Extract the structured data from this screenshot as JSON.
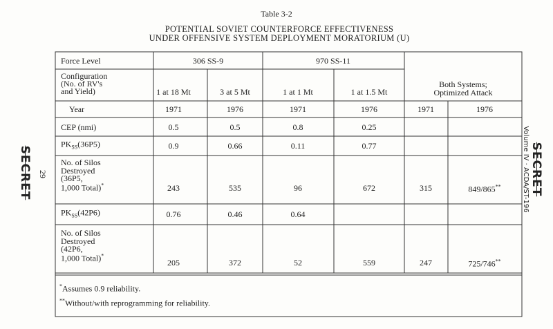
{
  "header": {
    "table_number": "Table 3-2",
    "title_line_1": "POTENTIAL SOVIET COUNTERFORCE EFFECTIVENESS",
    "title_line_2": "UNDER OFFENSIVE SYSTEM DEPLOYMENT MORATORIUM (U)"
  },
  "margin": {
    "left_stamp": "SECRET",
    "page_number": "29",
    "right_reference": "Volume IV · ACDA/ST-196",
    "right_stamp": "SECRET"
  },
  "table": {
    "force_level": {
      "label": "Force Level",
      "groups": [
        "306 SS-9",
        "970 SS-11"
      ]
    },
    "configuration": {
      "label": [
        "Configuration",
        "(No. of RV's",
        "and Yield)"
      ],
      "cells": [
        "1 at 18 Mt",
        "3 at 5 Mt",
        "1 at 1 Mt",
        "1 at 1.5 Mt"
      ],
      "both_systems": [
        "Both Systems;",
        "Optimized Attack"
      ]
    },
    "year": {
      "label": "Year",
      "values": [
        "1971",
        "1976",
        "1971",
        "1976",
        "1971",
        "1976"
      ]
    },
    "cep": {
      "label": "CEP (nmi)",
      "values": [
        "0.5",
        "0.5",
        "0.8",
        "0.25"
      ]
    },
    "pk_36p5": {
      "label": {
        "main": "PK",
        "sub": "SS",
        "rest": "(36P5)"
      },
      "values": [
        "0.9",
        "0.66",
        "0.11",
        "0.77"
      ]
    },
    "silos_36p5": {
      "label": [
        "No. of Silos",
        "Destroyed",
        "(36P5,",
        "1,000 Total)"
      ],
      "label_mark": "*",
      "values": [
        "243",
        "535",
        "96",
        "672",
        "315",
        "849/865"
      ],
      "last_mark": "**"
    },
    "pk_42p6": {
      "label": {
        "main": "PK",
        "sub": "SS",
        "rest": "(42P6)"
      },
      "values": [
        "0.76",
        "0.46",
        "0.64"
      ]
    },
    "silos_42p6": {
      "label": [
        "No. of Silos",
        "Destroyed",
        "(42P6,",
        "1,000 Total)"
      ],
      "label_mark": "*",
      "values": [
        "205",
        "372",
        "52",
        "559",
        "247",
        "725/746"
      ],
      "last_mark": "**"
    },
    "footnotes": [
      {
        "mark": "*",
        "text": "Assumes 0.9 reliability."
      },
      {
        "mark": "**",
        "text": "Without/with reprogramming for reliability."
      }
    ]
  }
}
